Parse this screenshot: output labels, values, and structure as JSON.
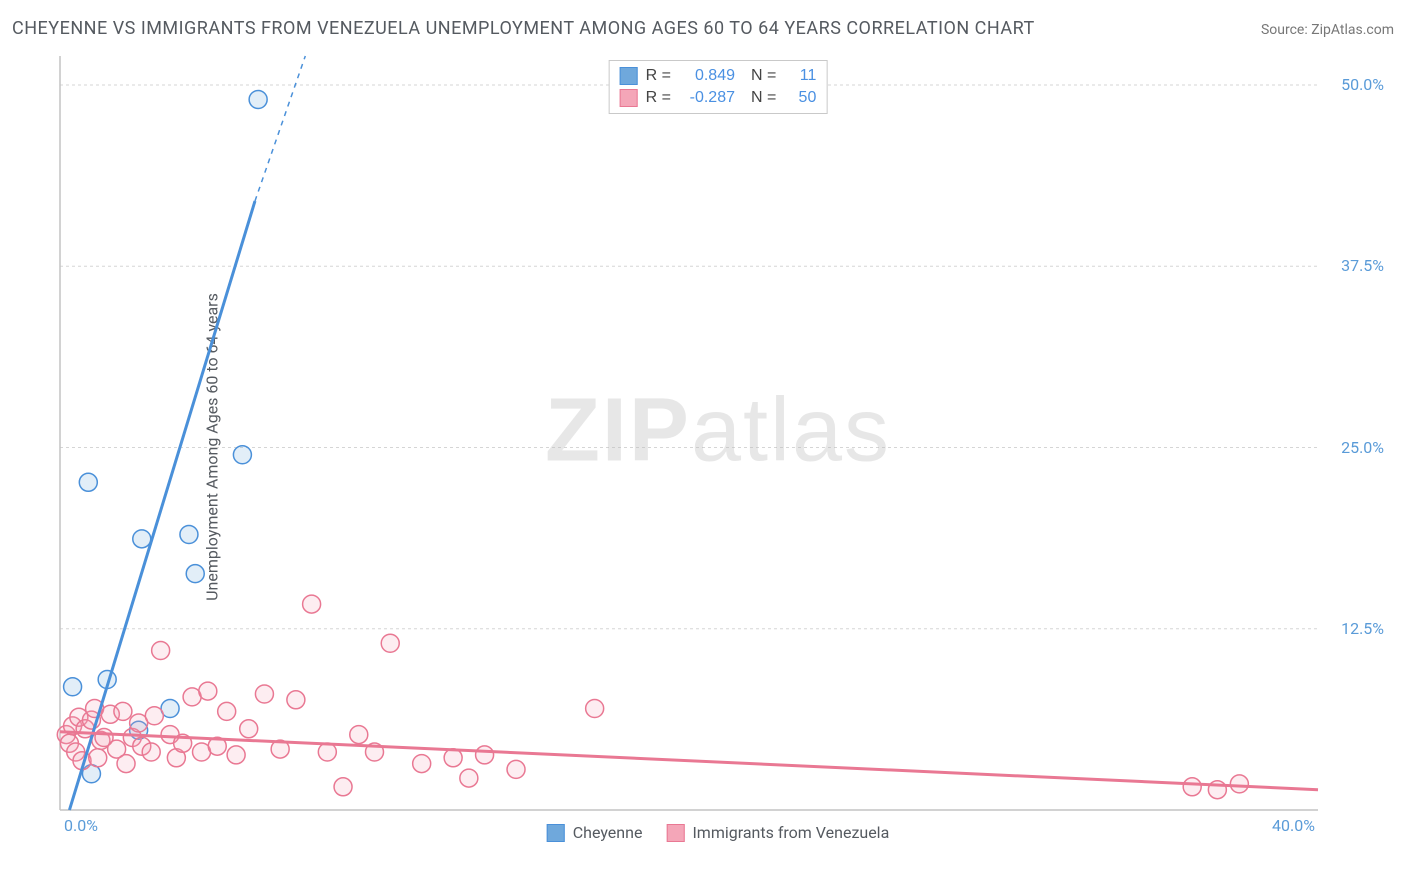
{
  "title": "CHEYENNE VS IMMIGRANTS FROM VENEZUELA UNEMPLOYMENT AMONG AGES 60 TO 64 YEARS CORRELATION CHART",
  "source": "Source: ZipAtlas.com",
  "ylabel": "Unemployment Among Ages 60 to 64 years",
  "watermark_a": "ZIP",
  "watermark_b": "atlas",
  "chart": {
    "type": "scatter",
    "background_color": "#ffffff",
    "grid_color": "#d5d5d5",
    "axis_color": "#c4c4c4",
    "xlim": [
      0,
      40
    ],
    "ylim": [
      0,
      52
    ],
    "x_ticks": [
      {
        "v": 0.0,
        "label": "0.0%"
      },
      {
        "v": 40.0,
        "label": "40.0%"
      }
    ],
    "y_ticks": [
      {
        "v": 12.5,
        "label": "12.5%"
      },
      {
        "v": 25.0,
        "label": "25.0%"
      },
      {
        "v": 37.5,
        "label": "37.5%"
      },
      {
        "v": 50.0,
        "label": "50.0%"
      }
    ],
    "tick_label_color": "#5a9bd8",
    "marker_radius": 9,
    "marker_stroke_width": 1.5,
    "marker_fill_opacity": 0.2,
    "trend_line_width": 3,
    "series": [
      {
        "name": "Cheyenne",
        "color": "#6fa8dc",
        "stroke": "#4a90d9",
        "stats": {
          "R": "0.849",
          "N": "11"
        },
        "trend": {
          "x1": 0.3,
          "y1": 0.0,
          "x2": 6.2,
          "y2": 42.0,
          "dash_ext": {
            "x2": 7.8,
            "y2": 52.0
          }
        },
        "points": [
          [
            6.3,
            49.0
          ],
          [
            0.9,
            22.6
          ],
          [
            4.1,
            19.0
          ],
          [
            4.3,
            16.3
          ],
          [
            2.6,
            18.7
          ],
          [
            5.8,
            24.5
          ],
          [
            1.5,
            9.0
          ],
          [
            0.4,
            8.5
          ],
          [
            3.5,
            7.0
          ],
          [
            2.5,
            5.5
          ],
          [
            1.0,
            2.5
          ]
        ]
      },
      {
        "name": "Immigrants from Venezuela",
        "color": "#f4a6b8",
        "stroke": "#e97893",
        "stats": {
          "R": "-0.287",
          "N": "50"
        },
        "trend": {
          "x1": 0.0,
          "y1": 5.4,
          "x2": 40.0,
          "y2": 1.4
        },
        "points": [
          [
            0.2,
            5.2
          ],
          [
            0.3,
            4.6
          ],
          [
            0.4,
            5.8
          ],
          [
            0.5,
            4.0
          ],
          [
            0.6,
            6.4
          ],
          [
            0.7,
            3.4
          ],
          [
            0.8,
            5.6
          ],
          [
            1.0,
            6.2
          ],
          [
            1.1,
            7.0
          ],
          [
            1.2,
            3.6
          ],
          [
            1.3,
            4.8
          ],
          [
            1.4,
            5.0
          ],
          [
            1.6,
            6.6
          ],
          [
            1.8,
            4.2
          ],
          [
            2.0,
            6.8
          ],
          [
            2.1,
            3.2
          ],
          [
            2.3,
            5.0
          ],
          [
            2.5,
            6.0
          ],
          [
            2.6,
            4.4
          ],
          [
            2.9,
            4.0
          ],
          [
            3.0,
            6.5
          ],
          [
            3.2,
            11.0
          ],
          [
            3.5,
            5.2
          ],
          [
            3.7,
            3.6
          ],
          [
            3.9,
            4.6
          ],
          [
            4.2,
            7.8
          ],
          [
            4.5,
            4.0
          ],
          [
            4.7,
            8.2
          ],
          [
            5.0,
            4.4
          ],
          [
            5.3,
            6.8
          ],
          [
            5.6,
            3.8
          ],
          [
            6.0,
            5.6
          ],
          [
            6.5,
            8.0
          ],
          [
            7.0,
            4.2
          ],
          [
            7.5,
            7.6
          ],
          [
            8.0,
            14.2
          ],
          [
            8.5,
            4.0
          ],
          [
            9.0,
            1.6
          ],
          [
            9.5,
            5.2
          ],
          [
            10.0,
            4.0
          ],
          [
            10.5,
            11.5
          ],
          [
            11.5,
            3.2
          ],
          [
            12.5,
            3.6
          ],
          [
            13.0,
            2.2
          ],
          [
            13.5,
            3.8
          ],
          [
            14.5,
            2.8
          ],
          [
            17.0,
            7.0
          ],
          [
            36.0,
            1.6
          ],
          [
            36.8,
            1.4
          ],
          [
            37.5,
            1.8
          ]
        ]
      }
    ]
  },
  "legend": {
    "r_label": "R =",
    "n_label": "N ="
  }
}
